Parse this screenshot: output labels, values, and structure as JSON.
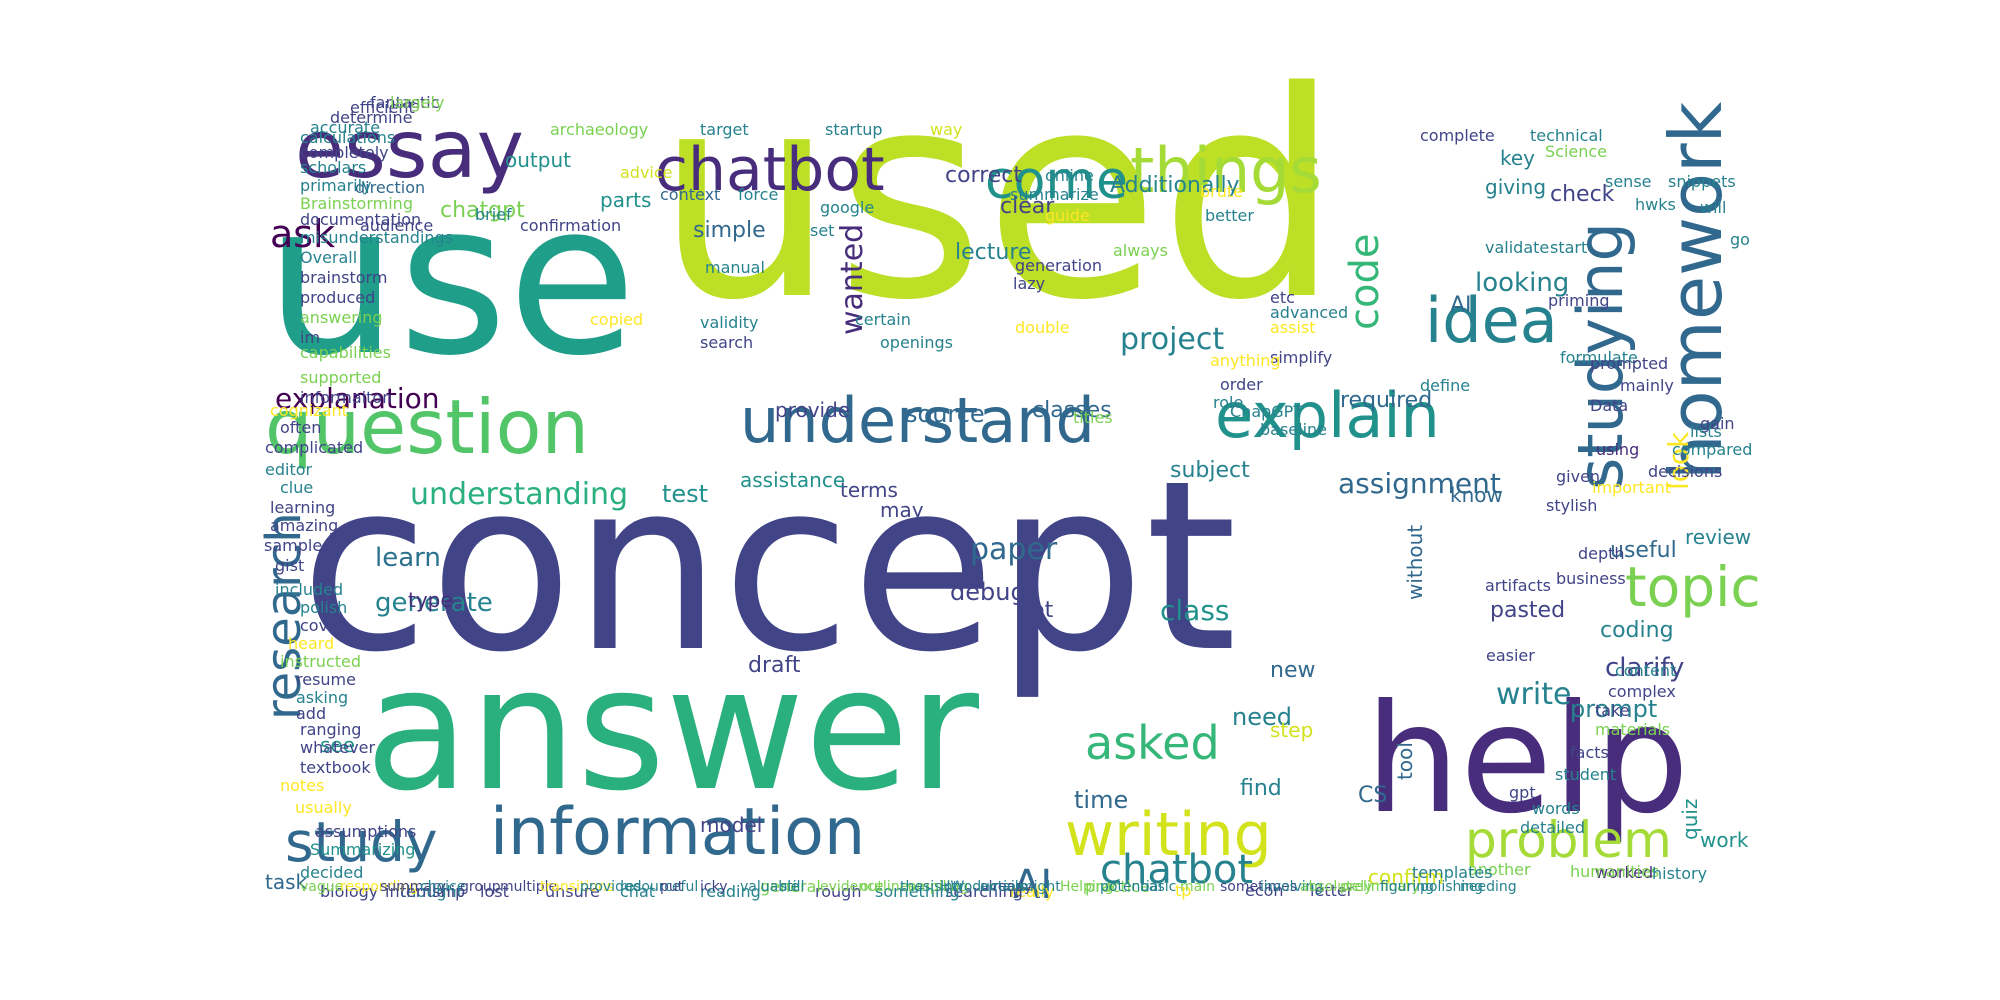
{
  "colors": {
    "background": "#ffffff",
    "navy": "#414487",
    "indigo": "#3b528b",
    "purple": "#472d7b",
    "dark": "#440154",
    "blue": "#31688e",
    "steel": "#2c728e",
    "teal": "#26828e",
    "teal2": "#21918c",
    "seagreen": "#1f9e89",
    "green": "#2ab07f",
    "green2": "#35b779",
    "lightgreen": "#52c569",
    "lime": "#7ad151",
    "lime2": "#a5db36",
    "yellowgreen": "#bddf26",
    "yellow": "#d2e21b",
    "gold": "#fde725"
  },
  "words": [
    {
      "text": "used",
      "color": "yellowgreen"
    },
    {
      "text": "concept",
      "color": "navy"
    },
    {
      "text": "use",
      "color": "seagreen"
    },
    {
      "text": "answer",
      "color": "green"
    },
    {
      "text": "help",
      "color": "purple"
    },
    {
      "text": "essay",
      "color": "purple"
    },
    {
      "text": "chatbot",
      "color": "purple"
    },
    {
      "text": "question",
      "color": "lightgreen"
    },
    {
      "text": "understand",
      "color": "blue"
    },
    {
      "text": "explain",
      "color": "teal2"
    },
    {
      "text": "information",
      "color": "blue"
    },
    {
      "text": "idea",
      "color": "teal"
    },
    {
      "text": "homework",
      "color": "blue"
    },
    {
      "text": "studying",
      "color": "blue"
    },
    {
      "text": "things",
      "color": "lime2"
    },
    {
      "text": "come",
      "color": "teal2"
    },
    {
      "text": "research",
      "color": "blue"
    },
    {
      "text": "writing",
      "color": "yellow"
    },
    {
      "text": "topic",
      "color": "lime"
    },
    {
      "text": "problem",
      "color": "lime2"
    },
    {
      "text": "study",
      "color": "blue"
    },
    {
      "text": "chatbot",
      "color": "teal"
    },
    {
      "text": "AI",
      "color": "blue"
    },
    {
      "text": "asked",
      "color": "green2"
    },
    {
      "text": "code",
      "color": "green2"
    },
    {
      "text": "ask",
      "color": "dark"
    },
    {
      "text": "explanation",
      "color": "dark"
    },
    {
      "text": "understanding",
      "color": "green"
    },
    {
      "text": "project",
      "color": "teal"
    },
    {
      "text": "wanted",
      "color": "purple"
    },
    {
      "text": "looking",
      "color": "teal"
    },
    {
      "text": "paper",
      "color": "blue"
    },
    {
      "text": "assignment",
      "color": "blue"
    },
    {
      "text": "write",
      "color": "teal"
    },
    {
      "text": "test",
      "color": "teal2"
    },
    {
      "text": "learn",
      "color": "steel"
    },
    {
      "text": "generate",
      "color": "teal"
    },
    {
      "text": "source",
      "color": "blue"
    },
    {
      "text": "classes",
      "color": "blue"
    },
    {
      "text": "Additionally",
      "color": "teal"
    },
    {
      "text": "simple",
      "color": "blue"
    },
    {
      "text": "lecture",
      "color": "teal"
    },
    {
      "text": "correct",
      "color": "navy"
    },
    {
      "text": "clear",
      "color": "navy"
    },
    {
      "text": "chatgpt",
      "color": "lime"
    },
    {
      "text": "output",
      "color": "teal2"
    },
    {
      "text": "parts",
      "color": "teal2"
    },
    {
      "text": "giving",
      "color": "teal"
    },
    {
      "text": "key",
      "color": "teal"
    },
    {
      "text": "check",
      "color": "navy"
    },
    {
      "text": "AI",
      "color": "blue"
    },
    {
      "text": "required",
      "color": "blue"
    },
    {
      "text": "look",
      "color": "gold"
    },
    {
      "text": "know",
      "color": "blue"
    },
    {
      "text": "review",
      "color": "teal"
    },
    {
      "text": "useful",
      "color": "blue"
    },
    {
      "text": "clarify",
      "color": "navy"
    },
    {
      "text": "prompt",
      "color": "teal"
    },
    {
      "text": "need",
      "color": "teal"
    },
    {
      "text": "step",
      "color": "yellow"
    },
    {
      "text": "time",
      "color": "blue"
    },
    {
      "text": "debug",
      "color": "navy"
    },
    {
      "text": "lot",
      "color": "navy"
    },
    {
      "text": "class",
      "color": "teal2"
    },
    {
      "text": "pasted",
      "color": "navy"
    },
    {
      "text": "coding",
      "color": "teal"
    },
    {
      "text": "without",
      "color": "blue"
    },
    {
      "text": "tool",
      "color": "blue"
    },
    {
      "text": "CS",
      "color": "blue"
    },
    {
      "text": "draft",
      "color": "navy"
    },
    {
      "text": "see",
      "color": "teal2"
    },
    {
      "text": "terms",
      "color": "navy"
    },
    {
      "text": "may",
      "color": "navy"
    },
    {
      "text": "subject",
      "color": "teal"
    },
    {
      "text": "assistance",
      "color": "teal2"
    },
    {
      "text": "provide",
      "color": "navy"
    },
    {
      "text": "new",
      "color": "blue"
    },
    {
      "text": "find",
      "color": "teal"
    },
    {
      "text": "quiz",
      "color": "teal2"
    },
    {
      "text": "work",
      "color": "teal2"
    },
    {
      "text": "confirm",
      "color": "yellow"
    },
    {
      "text": "task",
      "color": "blue"
    },
    {
      "text": "model",
      "color": "navy"
    },
    {
      "text": "type",
      "color": "purple"
    },
    {
      "text": "archaeology",
      "color": "lime"
    },
    {
      "text": "advice",
      "color": "yellow"
    },
    {
      "text": "target",
      "color": "teal"
    },
    {
      "text": "startup",
      "color": "teal"
    },
    {
      "text": "way",
      "color": "yellow"
    },
    {
      "text": "online",
      "color": "teal"
    },
    {
      "text": "summarize",
      "color": "teal"
    },
    {
      "text": "context",
      "color": "blue"
    },
    {
      "text": "force",
      "color": "teal"
    },
    {
      "text": "brief",
      "color": "teal"
    },
    {
      "text": "direction",
      "color": "blue"
    },
    {
      "text": "audience",
      "color": "navy"
    },
    {
      "text": "confirmation",
      "color": "navy"
    },
    {
      "text": "google",
      "color": "teal"
    },
    {
      "text": "set",
      "color": "teal"
    },
    {
      "text": "complete",
      "color": "navy"
    },
    {
      "text": "technical",
      "color": "teal"
    },
    {
      "text": "Science",
      "color": "lime"
    },
    {
      "text": "sense",
      "color": "teal"
    },
    {
      "text": "brute",
      "color": "gold"
    },
    {
      "text": "will",
      "color": "teal"
    },
    {
      "text": "snippets",
      "color": "teal"
    },
    {
      "text": "go",
      "color": "teal"
    },
    {
      "text": "hwks",
      "color": "teal"
    },
    {
      "text": "better",
      "color": "teal"
    },
    {
      "text": "guide",
      "color": "gold"
    },
    {
      "text": "start",
      "color": "teal"
    },
    {
      "text": "validate",
      "color": "teal"
    },
    {
      "text": "always",
      "color": "lime"
    },
    {
      "text": "generation",
      "color": "navy"
    },
    {
      "text": "lazy",
      "color": "navy"
    },
    {
      "text": "manual",
      "color": "teal"
    },
    {
      "text": "validity",
      "color": "teal"
    },
    {
      "text": "search",
      "color": "navy"
    },
    {
      "text": "copied",
      "color": "gold"
    },
    {
      "text": "certain",
      "color": "teal"
    },
    {
      "text": "openings",
      "color": "teal"
    },
    {
      "text": "double",
      "color": "gold"
    },
    {
      "text": "etc",
      "color": "navy"
    },
    {
      "text": "advanced",
      "color": "teal"
    },
    {
      "text": "assist",
      "color": "gold"
    },
    {
      "text": "simplify",
      "color": "navy"
    },
    {
      "text": "priming",
      "color": "navy"
    },
    {
      "text": "formulate",
      "color": "teal"
    },
    {
      "text": "prompted",
      "color": "navy"
    },
    {
      "text": "define",
      "color": "teal"
    },
    {
      "text": "order",
      "color": "navy"
    },
    {
      "text": "role",
      "color": "teal"
    },
    {
      "text": "titles",
      "color": "lime"
    },
    {
      "text": "anything",
      "color": "gold"
    },
    {
      "text": "ChapGPT",
      "color": "teal"
    },
    {
      "text": "baseline",
      "color": "teal"
    },
    {
      "text": "mainly",
      "color": "navy"
    },
    {
      "text": "Data",
      "color": "navy"
    },
    {
      "text": "lists",
      "color": "teal"
    },
    {
      "text": "gain",
      "color": "navy"
    },
    {
      "text": "compared",
      "color": "teal"
    },
    {
      "text": "decisions",
      "color": "navy"
    },
    {
      "text": "important",
      "color": "gold"
    },
    {
      "text": "using",
      "color": "purple"
    },
    {
      "text": "given",
      "color": "navy"
    },
    {
      "text": "stylish",
      "color": "navy"
    },
    {
      "text": "depth",
      "color": "navy"
    },
    {
      "text": "business",
      "color": "navy"
    },
    {
      "text": "artifacts",
      "color": "navy"
    },
    {
      "text": "easier",
      "color": "navy"
    },
    {
      "text": "content",
      "color": "teal"
    },
    {
      "text": "complex",
      "color": "navy"
    },
    {
      "text": "take",
      "color": "navy"
    },
    {
      "text": "materials",
      "color": "lime"
    },
    {
      "text": "facts",
      "color": "navy"
    },
    {
      "text": "student",
      "color": "teal"
    },
    {
      "text": "gpt",
      "color": "navy"
    },
    {
      "text": "words",
      "color": "teal"
    },
    {
      "text": "detailed",
      "color": "teal"
    },
    {
      "text": "worked",
      "color": "purple"
    },
    {
      "text": "another",
      "color": "lime"
    },
    {
      "text": "humanities",
      "color": "lime"
    },
    {
      "text": "history",
      "color": "teal"
    },
    {
      "text": "templates",
      "color": "teal"
    },
    {
      "text": "letter",
      "color": "navy"
    },
    {
      "text": "econ",
      "color": "navy"
    },
    {
      "text": "tp",
      "color": "gold"
    },
    {
      "text": "practice",
      "color": "lime"
    },
    {
      "text": "really",
      "color": "gold"
    },
    {
      "text": "searching",
      "color": "navy"
    },
    {
      "text": "something",
      "color": "teal"
    },
    {
      "text": "rough",
      "color": "navy"
    },
    {
      "text": "general",
      "color": "lime"
    },
    {
      "text": "reading",
      "color": "teal"
    },
    {
      "text": "chat",
      "color": "teal"
    },
    {
      "text": "unsure",
      "color": "navy"
    },
    {
      "text": "lost",
      "color": "navy"
    },
    {
      "text": "thought",
      "color": "teal"
    },
    {
      "text": "biology",
      "color": "navy"
    },
    {
      "text": "internship",
      "color": "navy"
    },
    {
      "text": "decided",
      "color": "teal"
    },
    {
      "text": "Summarizing",
      "color": "teal2"
    },
    {
      "text": "assumptions",
      "color": "navy"
    },
    {
      "text": "usually",
      "color": "gold"
    },
    {
      "text": "notes",
      "color": "gold"
    },
    {
      "text": "textbook",
      "color": "navy"
    },
    {
      "text": "whatever",
      "color": "navy"
    },
    {
      "text": "ranging",
      "color": "navy"
    },
    {
      "text": "add",
      "color": "navy"
    },
    {
      "text": "asking",
      "color": "teal"
    },
    {
      "text": "resume",
      "color": "navy"
    },
    {
      "text": "instructed",
      "color": "lime"
    },
    {
      "text": "heard",
      "color": "gold"
    },
    {
      "text": "cover",
      "color": "navy"
    },
    {
      "text": "polish",
      "color": "teal"
    },
    {
      "text": "included",
      "color": "teal"
    },
    {
      "text": "gist",
      "color": "navy"
    },
    {
      "text": "sample",
      "color": "navy"
    },
    {
      "text": "amazing",
      "color": "navy"
    },
    {
      "text": "learning",
      "color": "navy"
    },
    {
      "text": "clue",
      "color": "teal"
    },
    {
      "text": "editor",
      "color": "teal"
    },
    {
      "text": "complicated",
      "color": "navy"
    },
    {
      "text": "often",
      "color": "navy"
    },
    {
      "text": "cognizant",
      "color": "gold"
    },
    {
      "text": "informaiton",
      "color": "navy"
    },
    {
      "text": "supported",
      "color": "lime"
    },
    {
      "text": "capabilities",
      "color": "lime"
    },
    {
      "text": "im",
      "color": "navy"
    },
    {
      "text": "answering",
      "color": "lime"
    },
    {
      "text": "produced",
      "color": "navy"
    },
    {
      "text": "brainstorm",
      "color": "navy"
    },
    {
      "text": "Overall",
      "color": "teal"
    },
    {
      "text": "misunderstandings",
      "color": "teal"
    },
    {
      "text": "documentation",
      "color": "navy"
    },
    {
      "text": "Brainstorming",
      "color": "lime"
    },
    {
      "text": "primarily",
      "color": "teal"
    },
    {
      "text": "scholars",
      "color": "teal"
    },
    {
      "text": "completely",
      "color": "navy"
    },
    {
      "text": "calculations",
      "color": "teal"
    },
    {
      "text": "accurate",
      "color": "teal"
    },
    {
      "text": "determine",
      "color": "navy"
    },
    {
      "text": "efficient",
      "color": "navy"
    },
    {
      "text": "fantastic",
      "color": "navy"
    },
    {
      "text": "largely",
      "color": "lime"
    },
    {
      "text": "compiling",
      "color": "lime"
    },
    {
      "text": "introduction",
      "color": "teal"
    },
    {
      "text": "already",
      "color": "navy"
    },
    {
      "text": "might",
      "color": "teal"
    },
    {
      "text": "Helping",
      "color": "lime"
    },
    {
      "text": "potential",
      "color": "teal"
    },
    {
      "text": "basic",
      "color": "teal"
    },
    {
      "text": "main",
      "color": "lime"
    },
    {
      "text": "sometimes",
      "color": "navy"
    },
    {
      "text": "involving",
      "color": "teal"
    },
    {
      "text": "absolutely",
      "color": "lime"
    },
    {
      "text": "preliminary",
      "color": "lime"
    },
    {
      "text": "figuring",
      "color": "teal"
    },
    {
      "text": "polishing",
      "color": "teal"
    },
    {
      "text": "needing",
      "color": "teal"
    },
    {
      "text": "vague",
      "color": "lime"
    },
    {
      "text": "responding",
      "color": "gold"
    },
    {
      "text": "summary",
      "color": "navy"
    },
    {
      "text": "choice",
      "color": "teal"
    },
    {
      "text": "group",
      "color": "navy"
    },
    {
      "text": "multiple",
      "color": "navy"
    },
    {
      "text": "transitions",
      "color": "gold"
    },
    {
      "text": "provided",
      "color": "teal"
    },
    {
      "text": "resourceful",
      "color": "teal"
    },
    {
      "text": "put",
      "color": "navy"
    },
    {
      "text": "icky",
      "color": "navy"
    },
    {
      "text": "valuable",
      "color": "teal"
    },
    {
      "text": "still",
      "color": "teal"
    },
    {
      "text": "evidence",
      "color": "lime"
    },
    {
      "text": "outlines",
      "color": "lime"
    },
    {
      "text": "thesis",
      "color": "teal"
    },
    {
      "text": "HW",
      "color": "teal"
    },
    {
      "text": "emails",
      "color": "teal"
    }
  ]
}
